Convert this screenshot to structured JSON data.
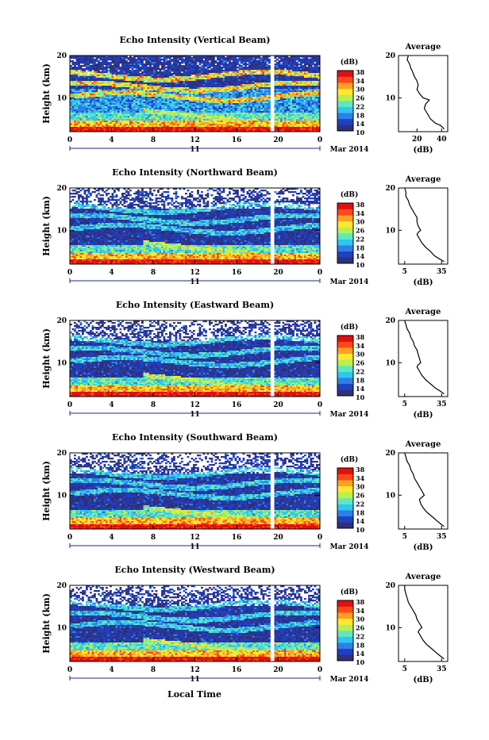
{
  "x_axis_title": "Local Time",
  "date_label": "Mar 2014",
  "day_label": "11",
  "height_label": "Height (km)",
  "colorbar_unit": "(dB)",
  "colorbar_ticks": [
    "10",
    "14",
    "18",
    "22",
    "26",
    "30",
    "34",
    "38"
  ],
  "colors": [
    "#30307a",
    "#2040c0",
    "#2f7fe8",
    "#2fc6f0",
    "#5fe8c0",
    "#b8f050",
    "#ffe830",
    "#ffa020",
    "#ff4818",
    "#e01010"
  ],
  "chart_data": [
    {
      "type": "heatmap",
      "title": "Echo Intensity (Vertical Beam)",
      "x_ticks": [
        "0",
        "4",
        "8",
        "12",
        "16",
        "20",
        "0"
      ],
      "y_ticks": [
        "20",
        "10"
      ],
      "xlim": [
        0,
        24
      ],
      "ylim": [
        2,
        20
      ],
      "clim": [
        10,
        38
      ],
      "missing_time": [
        19.2,
        19.5
      ],
      "profile": {
        "title": "Average",
        "xlabel": "(dB)",
        "x_ticks": [
          "20",
          "40"
        ],
        "xlim": [
          5,
          45
        ],
        "ylim": [
          2,
          20
        ],
        "y_ticks": [
          "20",
          "10"
        ],
        "points": [
          [
            13,
            20
          ],
          [
            12,
            19
          ],
          [
            14,
            18
          ],
          [
            15,
            17
          ],
          [
            16,
            16.5
          ],
          [
            18,
            15
          ],
          [
            20,
            14
          ],
          [
            21,
            13
          ],
          [
            20,
            12
          ],
          [
            22,
            11
          ],
          [
            25,
            10
          ],
          [
            30,
            9.5
          ],
          [
            27,
            8.5
          ],
          [
            26,
            7.5
          ],
          [
            28,
            6.5
          ],
          [
            31,
            5
          ],
          [
            35,
            4
          ],
          [
            39,
            3.5
          ],
          [
            41,
            3
          ],
          [
            42,
            2.6
          ]
        ]
      }
    },
    {
      "type": "heatmap",
      "title": "Echo Intensity (Northward Beam)",
      "x_ticks": [
        "0",
        "4",
        "8",
        "12",
        "16",
        "20",
        "0"
      ],
      "y_ticks": [
        "20",
        "10"
      ],
      "xlim": [
        0,
        24
      ],
      "ylim": [
        2,
        20
      ],
      "clim": [
        10,
        38
      ],
      "missing_time": [
        19.2,
        19.5
      ],
      "profile": {
        "title": "Average",
        "xlabel": "(dB)",
        "x_ticks": [
          "5",
          "35"
        ],
        "xlim": [
          0,
          40
        ],
        "ylim": [
          2,
          20
        ],
        "y_ticks": [
          "20",
          "10"
        ],
        "points": [
          [
            5,
            20
          ],
          [
            6,
            19
          ],
          [
            6,
            18
          ],
          [
            8,
            17
          ],
          [
            9,
            16
          ],
          [
            11,
            15
          ],
          [
            13,
            14
          ],
          [
            15,
            13
          ],
          [
            15,
            12
          ],
          [
            16,
            11
          ],
          [
            18,
            10
          ],
          [
            16,
            9.5
          ],
          [
            15,
            9
          ],
          [
            17,
            8
          ],
          [
            19,
            7
          ],
          [
            22,
            6
          ],
          [
            26,
            5
          ],
          [
            29,
            4
          ],
          [
            33,
            3.3
          ],
          [
            37,
            2.6
          ]
        ]
      }
    },
    {
      "type": "heatmap",
      "title": "Echo Intensity (Eastward Beam)",
      "x_ticks": [
        "0",
        "4",
        "8",
        "12",
        "16",
        "20",
        "0"
      ],
      "y_ticks": [
        "20",
        "10"
      ],
      "xlim": [
        0,
        24
      ],
      "ylim": [
        2,
        20
      ],
      "clim": [
        10,
        38
      ],
      "missing_time": [
        19.2,
        19.5
      ],
      "profile": {
        "title": "Average",
        "xlabel": "(dB)",
        "x_ticks": [
          "5",
          "35"
        ],
        "xlim": [
          0,
          40
        ],
        "ylim": [
          2,
          20
        ],
        "y_ticks": [
          "20",
          "10"
        ],
        "points": [
          [
            5,
            20
          ],
          [
            6,
            19
          ],
          [
            7,
            18
          ],
          [
            9,
            17
          ],
          [
            10,
            16
          ],
          [
            12,
            15
          ],
          [
            13,
            14
          ],
          [
            15,
            13
          ],
          [
            16,
            12
          ],
          [
            17,
            11
          ],
          [
            18,
            10
          ],
          [
            16,
            9.5
          ],
          [
            15,
            9
          ],
          [
            17,
            8
          ],
          [
            19,
            7
          ],
          [
            22,
            6
          ],
          [
            26,
            5
          ],
          [
            30,
            4
          ],
          [
            34,
            3.3
          ],
          [
            37,
            2.6
          ]
        ]
      }
    },
    {
      "type": "heatmap",
      "title": "Echo Intensity (Southward Beam)",
      "x_ticks": [
        "0",
        "4",
        "8",
        "12",
        "16",
        "20",
        "0"
      ],
      "y_ticks": [
        "20",
        "10"
      ],
      "xlim": [
        0,
        24
      ],
      "ylim": [
        2,
        20
      ],
      "clim": [
        10,
        38
      ],
      "missing_time": [
        19.2,
        19.5
      ],
      "profile": {
        "title": "Average",
        "xlabel": "(dB)",
        "x_ticks": [
          "5",
          "35"
        ],
        "xlim": [
          0,
          40
        ],
        "ylim": [
          2,
          20
        ],
        "y_ticks": [
          "20",
          "10"
        ],
        "points": [
          [
            5,
            20
          ],
          [
            6,
            19
          ],
          [
            7,
            18
          ],
          [
            9,
            17
          ],
          [
            10,
            16
          ],
          [
            12,
            15
          ],
          [
            13,
            14
          ],
          [
            15,
            13
          ],
          [
            17,
            12
          ],
          [
            19,
            11
          ],
          [
            21,
            10
          ],
          [
            19,
            9.5
          ],
          [
            17,
            9
          ],
          [
            18,
            8
          ],
          [
            20,
            7
          ],
          [
            23,
            6
          ],
          [
            27,
            5
          ],
          [
            31,
            4
          ],
          [
            34,
            3.3
          ],
          [
            37,
            2.6
          ]
        ]
      }
    },
    {
      "type": "heatmap",
      "title": "Echo Intensity (Westward Beam)",
      "x_ticks": [
        "0",
        "4",
        "8",
        "12",
        "16",
        "20",
        "0"
      ],
      "y_ticks": [
        "20",
        "10"
      ],
      "xlim": [
        0,
        24
      ],
      "ylim": [
        2,
        20
      ],
      "clim": [
        10,
        38
      ],
      "missing_time": [
        19.2,
        19.5
      ],
      "profile": {
        "title": "Average",
        "xlabel": "(dB)",
        "x_ticks": [
          "5",
          "35"
        ],
        "xlim": [
          0,
          40
        ],
        "ylim": [
          2,
          20
        ],
        "y_ticks": [
          "20",
          "10"
        ],
        "points": [
          [
            5,
            20
          ],
          [
            5,
            19
          ],
          [
            6,
            18
          ],
          [
            7,
            17
          ],
          [
            8,
            16
          ],
          [
            10,
            15
          ],
          [
            12,
            14
          ],
          [
            14,
            13
          ],
          [
            15,
            12
          ],
          [
            17,
            11
          ],
          [
            19,
            10
          ],
          [
            17,
            9.5
          ],
          [
            16,
            9
          ],
          [
            18,
            8
          ],
          [
            20,
            7
          ],
          [
            23,
            6
          ],
          [
            27,
            5
          ],
          [
            31,
            4
          ],
          [
            34,
            3.3
          ],
          [
            37,
            2.6
          ]
        ]
      }
    }
  ]
}
